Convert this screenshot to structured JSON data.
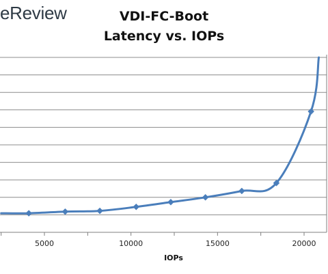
{
  "header": {
    "logo_text": "eReview"
  },
  "chart_data": {
    "type": "line",
    "title": "VDI-FC-Boot",
    "subtitle": "Latency vs. IOPs",
    "xlabel": "IOPs",
    "ylabel": "",
    "x_ticks": [
      5000,
      10000,
      15000,
      20000
    ],
    "xlim": [
      2500,
      21000
    ],
    "ylim": [
      0,
      11
    ],
    "grid": true,
    "series": [
      {
        "color": "#4a7ebb",
        "points": [
          [
            2500,
            1.2
          ],
          [
            4100,
            1.2
          ],
          [
            6200,
            1.3
          ],
          [
            8200,
            1.35
          ],
          [
            10300,
            1.6
          ],
          [
            12300,
            1.9
          ],
          [
            14300,
            2.2
          ],
          [
            16400,
            2.6
          ],
          [
            18400,
            3.1
          ],
          [
            20400,
            7.6
          ],
          [
            20850,
            11.0
          ]
        ],
        "markers": [
          false,
          true,
          true,
          true,
          true,
          true,
          true,
          true,
          true,
          true,
          false
        ]
      }
    ]
  }
}
